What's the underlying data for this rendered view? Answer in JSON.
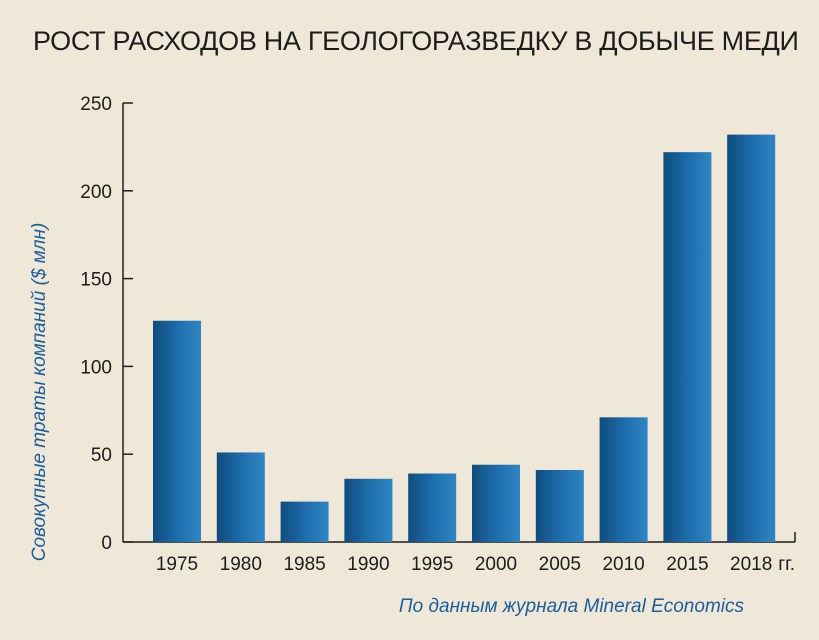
{
  "title": "РОСТ РАСХОДОВ НА ГЕОЛОГОРАЗВЕДКУ В ДОБЫЧЕ МЕДИ",
  "source": "По данным журнала Mineral Economics",
  "colors": {
    "background": "#efe8d8",
    "bar_dark": "#0e4d7e",
    "bar_light": "#2f86c4",
    "label_blue": "#1a5e9c",
    "axis": "#1d1d1b"
  },
  "chart_data": {
    "type": "bar",
    "title": "РОСТ РАСХОДОВ НА ГЕОЛОГОРАЗВЕДКУ В ДОБЫЧЕ МЕДИ",
    "ylabel": "Совокупные траты компаний ($ млн)",
    "xlabel": "",
    "x_unit_label": "гг.",
    "categories": [
      "1975",
      "1980",
      "1985",
      "1990",
      "1995",
      "2000",
      "2005",
      "2010",
      "2015",
      "2018"
    ],
    "values": [
      126,
      51,
      23,
      36,
      39,
      44,
      41,
      71,
      222,
      232
    ],
    "ylim": [
      0,
      250
    ],
    "yticks": [
      0,
      50,
      100,
      150,
      200,
      250
    ],
    "grid": false,
    "legend": "none"
  }
}
